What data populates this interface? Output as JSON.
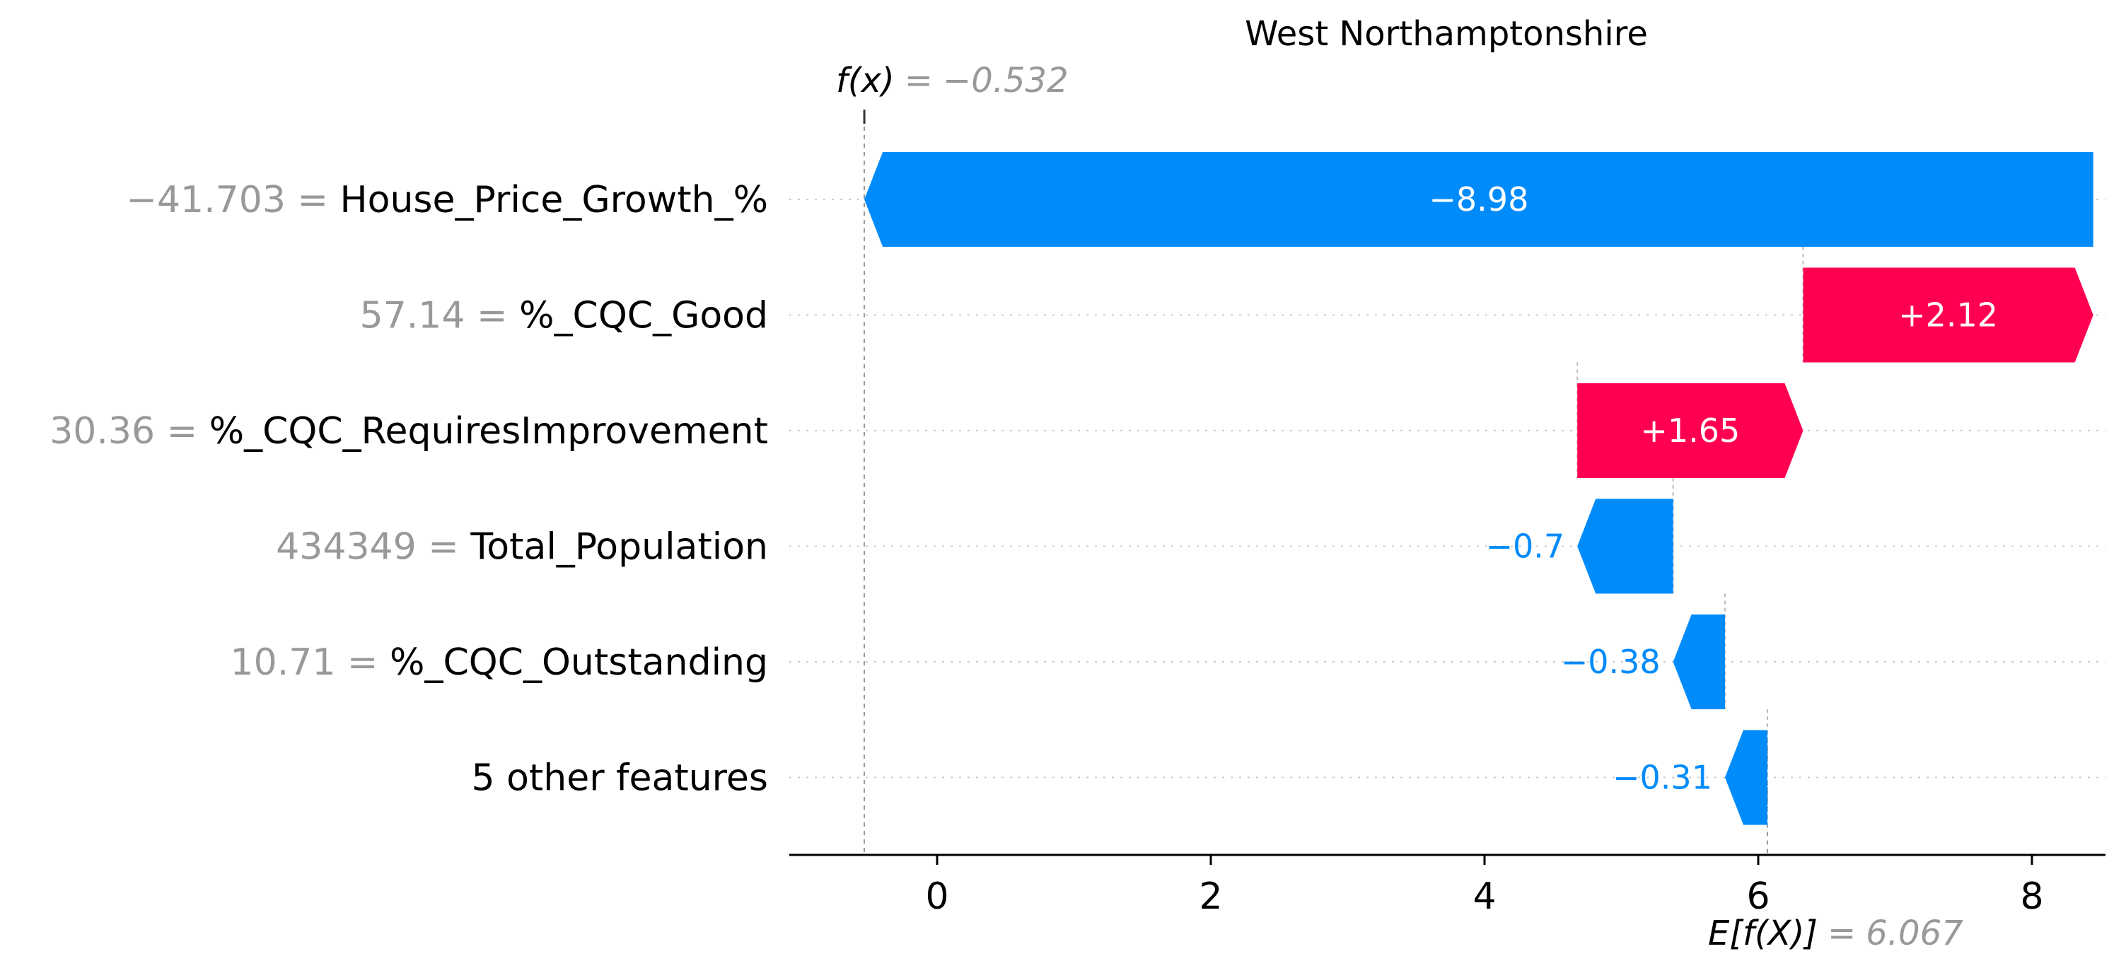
{
  "chart_data": {
    "type": "bar",
    "subtype": "shap-waterfall",
    "title": "West Northamptonshire",
    "fx_label": "f(x)",
    "fx_value": "−0.532",
    "fx": -0.532,
    "base_label": "E[f(X)]",
    "base_value_text": "6.067",
    "base": 6.067,
    "xlim": [
      -1.05,
      8.55
    ],
    "xticks": [
      0,
      2,
      4,
      6,
      8
    ],
    "xtick_labels": [
      "0",
      "2",
      "4",
      "6",
      "8"
    ],
    "grid": "horizontal dotted per row",
    "rows": [
      {
        "value_label": "−41.703 =",
        "feature": "House_Price_Growth_%",
        "contribution": -8.98,
        "label": "−8.98",
        "start": 8.448,
        "end": -0.532
      },
      {
        "value_label": "57.14 =",
        "feature": "%_CQC_Good",
        "contribution": 2.12,
        "label": "+2.12",
        "start": 6.328,
        "end": 8.448
      },
      {
        "value_label": "30.36 =",
        "feature": "%_CQC_RequiresImprovement",
        "contribution": 1.65,
        "label": "+1.65",
        "start": 4.678,
        "end": 6.328
      },
      {
        "value_label": "434349 =",
        "feature": "Total_Population",
        "contribution": -0.7,
        "label": "−0.7",
        "start": 5.378,
        "end": 4.678
      },
      {
        "value_label": "10.71 =",
        "feature": "%_CQC_Outstanding",
        "contribution": -0.38,
        "label": "−0.38",
        "start": 5.757,
        "end": 5.378
      },
      {
        "value_label": "",
        "feature": "5 other features",
        "contribution": -0.31,
        "label": "−0.31",
        "start": 6.067,
        "end": 5.757
      }
    ],
    "colors": {
      "negative": "#008bfb",
      "positive": "#ff0051",
      "value_text": "#999999",
      "grid": "#cccccc"
    }
  }
}
